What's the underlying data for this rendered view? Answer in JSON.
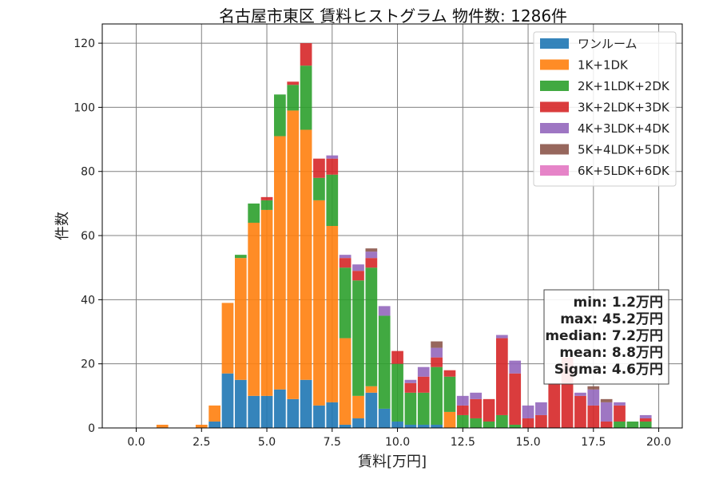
{
  "chart_data": {
    "type": "bar",
    "stacked": true,
    "title": "名古屋市東区 賃料ヒストグラム 物件数: 1286件",
    "xlabel": "賃料[万円]",
    "ylabel": "件数",
    "xlim": [
      -1.3,
      20.9
    ],
    "ylim": [
      0,
      126
    ],
    "xticks": [
      0.0,
      2.5,
      5.0,
      7.5,
      10.0,
      12.5,
      15.0,
      17.5,
      20.0
    ],
    "xtick_labels": [
      "0.0",
      "2.5",
      "5.0",
      "7.5",
      "10.0",
      "12.5",
      "15.0",
      "17.5",
      "20.0"
    ],
    "yticks": [
      0,
      20,
      40,
      60,
      80,
      100,
      120
    ],
    "ytick_labels": [
      "0",
      "20",
      "40",
      "60",
      "80",
      "100",
      "120"
    ],
    "grid": true,
    "legend_position": "top-right",
    "bin_width": 0.5,
    "x": [
      1.0,
      2.5,
      3.0,
      3.5,
      4.0,
      4.5,
      5.0,
      5.5,
      6.0,
      6.5,
      7.0,
      7.5,
      8.0,
      8.5,
      9.0,
      9.5,
      10.0,
      10.5,
      11.0,
      11.5,
      12.0,
      12.5,
      13.0,
      13.5,
      14.0,
      14.5,
      15.0,
      15.5,
      16.0,
      16.5,
      17.0,
      17.5,
      18.0,
      18.5,
      19.0,
      19.5
    ],
    "series": [
      {
        "name": "ワンルーム",
        "color": "#1f77b4",
        "values": [
          0,
          0,
          2,
          17,
          15,
          10,
          10,
          12,
          9,
          15,
          7,
          8,
          1,
          3,
          11,
          6,
          2,
          1,
          1,
          1,
          0,
          0,
          0,
          0,
          0,
          0,
          0,
          0,
          0,
          0,
          0,
          0,
          0,
          0,
          0,
          0
        ]
      },
      {
        "name": "1K+1DK",
        "color": "#ff7f0e",
        "values": [
          1,
          1,
          5,
          22,
          38,
          54,
          58,
          79,
          90,
          78,
          64,
          55,
          27,
          7,
          2,
          0,
          0,
          0,
          0,
          0,
          5,
          0,
          0,
          0,
          0,
          0,
          0,
          0,
          0,
          0,
          0,
          0,
          0,
          0,
          0,
          0
        ]
      },
      {
        "name": "2K+1LDK+2DK",
        "color": "#2ca02c",
        "values": [
          0,
          0,
          0,
          0,
          1,
          6,
          3,
          13,
          8,
          20,
          7,
          16,
          22,
          36,
          37,
          29,
          18,
          10,
          10,
          18,
          11,
          4,
          3,
          2,
          4,
          1,
          0,
          0,
          0,
          0,
          0,
          0,
          0,
          2,
          2,
          2
        ]
      },
      {
        "name": "3K+2LDK+3DK",
        "color": "#d62728",
        "values": [
          0,
          0,
          0,
          0,
          0,
          0,
          1,
          0,
          1,
          7,
          6,
          5,
          3,
          3,
          3,
          0,
          4,
          3,
          5,
          3,
          2,
          3,
          6,
          7,
          24,
          16,
          3,
          4,
          14,
          22,
          10,
          7,
          2,
          5,
          0,
          1
        ]
      },
      {
        "name": "4K+3LDK+4DK",
        "color": "#9467bd",
        "values": [
          0,
          0,
          0,
          0,
          0,
          0,
          0,
          0,
          0,
          0,
          0,
          1,
          1,
          2,
          2,
          3,
          0,
          1,
          3,
          3,
          0,
          3,
          2,
          0,
          1,
          4,
          4,
          4,
          0,
          0,
          1,
          5,
          6,
          1,
          0,
          1
        ]
      },
      {
        "name": "5K+4LDK+5DK",
        "color": "#8c564b",
        "values": [
          0,
          0,
          0,
          0,
          0,
          0,
          0,
          0,
          0,
          0,
          0,
          0,
          0,
          0,
          1,
          0,
          0,
          0,
          0,
          2,
          0,
          0,
          0,
          0,
          0,
          0,
          0,
          0,
          0,
          0,
          0,
          1,
          1,
          0,
          0,
          0
        ]
      },
      {
        "name": "6K+5LDK+6DK",
        "color": "#e377c2",
        "values": [
          0,
          0,
          0,
          0,
          0,
          0,
          0,
          0,
          0,
          0,
          0,
          0,
          0,
          0,
          0,
          0,
          0,
          0,
          0,
          0,
          0,
          0,
          0,
          0,
          0,
          0,
          0,
          0,
          0,
          0,
          0,
          0,
          0,
          0,
          0,
          0
        ]
      }
    ],
    "stats": {
      "min": "min: 1.2万円",
      "max": "max: 45.2万円",
      "median": "median: 7.2万円",
      "mean": "mean: 8.8万円",
      "sigma": "Sigma: 4.6万円"
    }
  }
}
